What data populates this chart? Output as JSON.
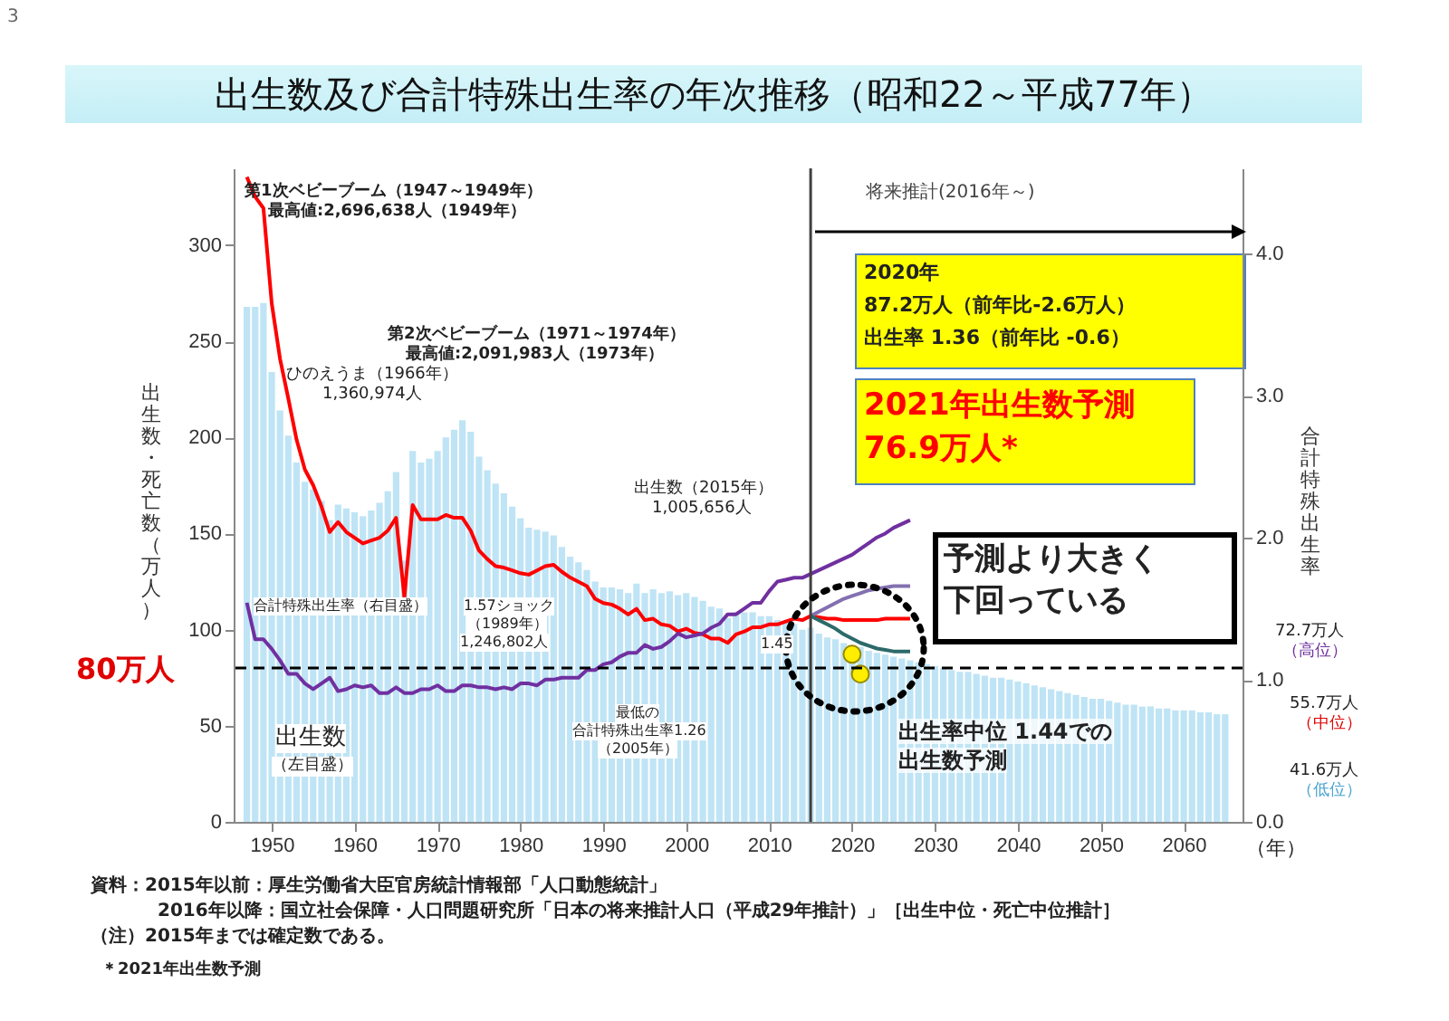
{
  "chart_data": {
    "type": "bar",
    "title": "出生数及び合計特殊出生率の年次推移（昭和22～平成77年）",
    "ylabel": "出生数・死亡数（万人）",
    "y2label": "合計特殊出生率",
    "xlabel": "（年）",
    "xlim": [
      1946.5,
      2066
    ],
    "xticks": [
      1950,
      1960,
      1970,
      1980,
      1990,
      2000,
      2010,
      2020,
      2030,
      2040,
      2050,
      2060
    ],
    "ylim": [
      0,
      340
    ],
    "yticks": [
      0,
      50,
      100,
      150,
      200,
      250,
      300
    ],
    "y2lim": [
      0,
      4.6
    ],
    "y2ticks": [
      {
        "value": 0,
        "label": "0.0"
      },
      {
        "value": 1,
        "label": "1.0"
      },
      {
        "value": 2,
        "label": "2.0"
      },
      {
        "value": 3,
        "label": "3.0"
      },
      {
        "value": 4,
        "label": "4.0"
      }
    ],
    "grid": false,
    "series": [
      {
        "color": "#bfe4f5",
        "x": [
          1947,
          1948,
          1949,
          1950,
          1951,
          1952,
          1953,
          1954,
          1955,
          1956,
          1957,
          1958,
          1959,
          1960,
          1961,
          1962,
          1963,
          1964,
          1965,
          1966,
          1967,
          1968,
          1969,
          1970,
          1971,
          1972,
          1973,
          1974,
          1975,
          1976,
          1977,
          1978,
          1979,
          1980,
          1981,
          1982,
          1983,
          1984,
          1985,
          1986,
          1987,
          1988,
          1989,
          1990,
          1991,
          1992,
          1993,
          1994,
          1995,
          1996,
          1997,
          1998,
          1999,
          2000,
          2001,
          2002,
          2003,
          2004,
          2005,
          2006,
          2007,
          2008,
          2009,
          2010,
          2011,
          2012,
          2013,
          2014,
          2015,
          2016,
          2017,
          2018,
          2019,
          2020,
          2021,
          2022,
          2023,
          2024,
          2025,
          2026,
          2027,
          2028,
          2029,
          2030,
          2031,
          2032,
          2033,
          2034,
          2035,
          2036,
          2037,
          2038,
          2039,
          2040,
          2041,
          2042,
          2043,
          2044,
          2045,
          2046,
          2047,
          2048,
          2049,
          2050,
          2051,
          2052,
          2053,
          2054,
          2055,
          2056,
          2057,
          2058,
          2059,
          2060,
          2061,
          2062,
          2063,
          2064,
          2065
        ],
        "values": [
          268,
          268,
          270,
          234,
          214,
          201,
          187,
          177,
          173,
          167,
          157,
          165,
          163,
          161,
          159,
          162,
          166,
          172,
          182,
          136,
          193,
          187,
          189,
          193,
          200,
          204,
          209,
          203,
          190,
          183,
          176,
          171,
          164,
          158,
          153,
          152,
          151,
          149,
          143,
          138,
          135,
          131,
          125,
          122,
          122,
          121,
          119,
          124,
          119,
          121,
          119,
          120,
          118,
          119,
          117,
          115,
          112,
          111,
          106,
          109,
          109,
          109,
          107,
          107,
          105,
          104,
          103,
          100,
          101,
          98,
          96,
          95,
          93,
          92,
          91,
          89,
          88,
          87,
          86,
          85,
          84,
          83,
          82,
          81,
          80,
          79,
          78,
          78,
          77,
          76,
          75,
          75,
          74,
          73,
          72,
          71,
          70,
          69,
          68,
          67,
          66,
          65,
          64,
          64,
          63,
          62,
          61,
          61,
          60,
          60,
          59,
          59,
          58,
          58,
          58,
          57,
          57,
          56,
          56
        ]
      },
      {
        "type": "line",
        "color": "#ff0000",
        "axis": "y2",
        "x": [
          1947,
          1948,
          1949,
          1950,
          1951,
          1952,
          1953,
          1954,
          1955,
          1956,
          1957,
          1958,
          1959,
          1960,
          1961,
          1962,
          1963,
          1964,
          1965,
          1966,
          1967,
          1968,
          1969,
          1970,
          1971,
          1972,
          1973,
          1974,
          1975,
          1976,
          1977,
          1978,
          1979,
          1980,
          1981,
          1982,
          1983,
          1984,
          1985,
          1986,
          1987,
          1988,
          1989,
          1990,
          1991,
          1992,
          1993,
          1994,
          1995,
          1996,
          1997,
          1998,
          1999,
          2000,
          2001,
          2002,
          2003,
          2004,
          2005,
          2006,
          2007,
          2008,
          2009,
          2010,
          2011,
          2012,
          2013,
          2014,
          2015,
          2016,
          2017,
          2018,
          2019,
          2020,
          2021,
          2022,
          2023,
          2024,
          2025,
          2026,
          2027
        ],
        "values": [
          4.54,
          4.4,
          4.32,
          3.65,
          3.26,
          2.98,
          2.69,
          2.48,
          2.37,
          2.22,
          2.04,
          2.11,
          2.04,
          2.0,
          1.96,
          1.98,
          2.0,
          2.05,
          2.14,
          1.58,
          2.23,
          2.13,
          2.13,
          2.13,
          2.16,
          2.14,
          2.14,
          2.05,
          1.91,
          1.85,
          1.8,
          1.79,
          1.77,
          1.75,
          1.74,
          1.77,
          1.8,
          1.81,
          1.76,
          1.72,
          1.69,
          1.66,
          1.57,
          1.54,
          1.53,
          1.5,
          1.46,
          1.5,
          1.42,
          1.43,
          1.39,
          1.38,
          1.34,
          1.36,
          1.33,
          1.32,
          1.29,
          1.29,
          1.26,
          1.32,
          1.34,
          1.37,
          1.37,
          1.39,
          1.39,
          1.41,
          1.43,
          1.42,
          1.45,
          1.44,
          1.43,
          1.43,
          1.42,
          1.42,
          1.42,
          1.42,
          1.42,
          1.43,
          1.43,
          1.43,
          1.43
        ]
      },
      {
        "type": "line",
        "color": "#7030a0",
        "axis": "y",
        "x": [
          1947,
          1948,
          1949,
          1950,
          1951,
          1952,
          1953,
          1954,
          1955,
          1956,
          1957,
          1958,
          1959,
          1960,
          1961,
          1962,
          1963,
          1964,
          1965,
          1966,
          1967,
          1968,
          1969,
          1970,
          1971,
          1972,
          1973,
          1974,
          1975,
          1976,
          1977,
          1978,
          1979,
          1980,
          1981,
          1982,
          1983,
          1984,
          1985,
          1986,
          1987,
          1988,
          1989,
          1990,
          1991,
          1992,
          1993,
          1994,
          1995,
          1996,
          1997,
          1998,
          1999,
          2000,
          2001,
          2002,
          2003,
          2004,
          2005,
          2006,
          2007,
          2008,
          2009,
          2010,
          2011,
          2012,
          2013,
          2014,
          2015,
          2016,
          2017,
          2018,
          2019,
          2020,
          2021,
          2022,
          2023,
          2024,
          2025,
          2026,
          2027
        ],
        "values": [
          114,
          95,
          95,
          90,
          84,
          77,
          77,
          72,
          69,
          72,
          75,
          68,
          69,
          71,
          70,
          71,
          67,
          67,
          70,
          67,
          67,
          69,
          69,
          71,
          68,
          68,
          71,
          71,
          70,
          70,
          69,
          70,
          69,
          72,
          72,
          71,
          74,
          74,
          75,
          75,
          75,
          79,
          79,
          82,
          83,
          86,
          88,
          88,
          92,
          90,
          91,
          94,
          98,
          96,
          97,
          98,
          101,
          103,
          108,
          108,
          111,
          114,
          114,
          120,
          125,
          126,
          127,
          127,
          129,
          131,
          133,
          135,
          137,
          139,
          142,
          145,
          148,
          150,
          153,
          155,
          157
        ]
      },
      {
        "type": "line",
        "color": "#8470b0",
        "axis": "y2",
        "x": [
          2015,
          2016,
          2017,
          2018,
          2019,
          2020,
          2021,
          2022,
          2023,
          2024,
          2025,
          2026,
          2027
        ],
        "values": [
          1.45,
          1.48,
          1.51,
          1.54,
          1.57,
          1.59,
          1.61,
          1.63,
          1.64,
          1.65,
          1.66,
          1.66,
          1.66
        ]
      },
      {
        "type": "line",
        "color": "#2d6a6a",
        "axis": "y2",
        "x": [
          2015,
          2016,
          2017,
          2018,
          2019,
          2020,
          2021,
          2022,
          2023,
          2024,
          2025,
          2026,
          2027
        ],
        "values": [
          1.45,
          1.42,
          1.39,
          1.36,
          1.32,
          1.29,
          1.26,
          1.24,
          1.22,
          1.21,
          1.2,
          1.2,
          1.2
        ]
      },
      {
        "type": "scatter",
        "color": "#ffee00",
        "marker": "circle",
        "axis": "y",
        "x": [
          2020,
          2021
        ],
        "values": [
          87.2,
          76.9
        ]
      }
    ],
    "ref_lines": [
      {
        "axis": "y",
        "value": 80,
        "label": "80万人",
        "line_style": "dashed",
        "color": "#000000"
      },
      {
        "axis": "x",
        "value": 2015,
        "label": "将来推計(2016年～)",
        "color": "#404040"
      }
    ],
    "annotations": [
      "第1次ベビーブーム（1947～1949年）",
      "最高値:2,696,638人（1949年）",
      "第2次ベビーブーム（1971～1974年）",
      "最高値:2,091,983人（1973年）",
      "ひのえうま（1966年）",
      "1,360,974人",
      "出生数（2015年）",
      "1,005,656人",
      "合計特殊出生率（右目盛）",
      "1.57ショック",
      "（1989年）",
      "1,246,802人",
      "最低の",
      "合計特殊出生率1.26",
      "（2005年）",
      "出生数",
      "（左目盛）",
      "1.45",
      "2020年",
      "87.2万人（前年比-2.6万人）",
      "出生率 1.36（前年比 -0.6）",
      "2021年出生数予測",
      "76.9万人*",
      "予測より大きく",
      "下回っている",
      "出生率中位 1.44での",
      "出生数予測",
      "72.7万人",
      "（高位）",
      "55.7万人",
      "（中位）",
      "41.6万人",
      "（低位）",
      "資料：2015年以前：厚生労働省大臣官房統計情報部「人口動態統計」",
      "2016年以降：国立社会保障・人口問題研究所「日本の将来推計人口（平成29年推計）」［出生中位・死亡中位推計］",
      "（注）2015年までは確定数である。",
      "＊2021年出生数予測",
      "3"
    ]
  }
}
